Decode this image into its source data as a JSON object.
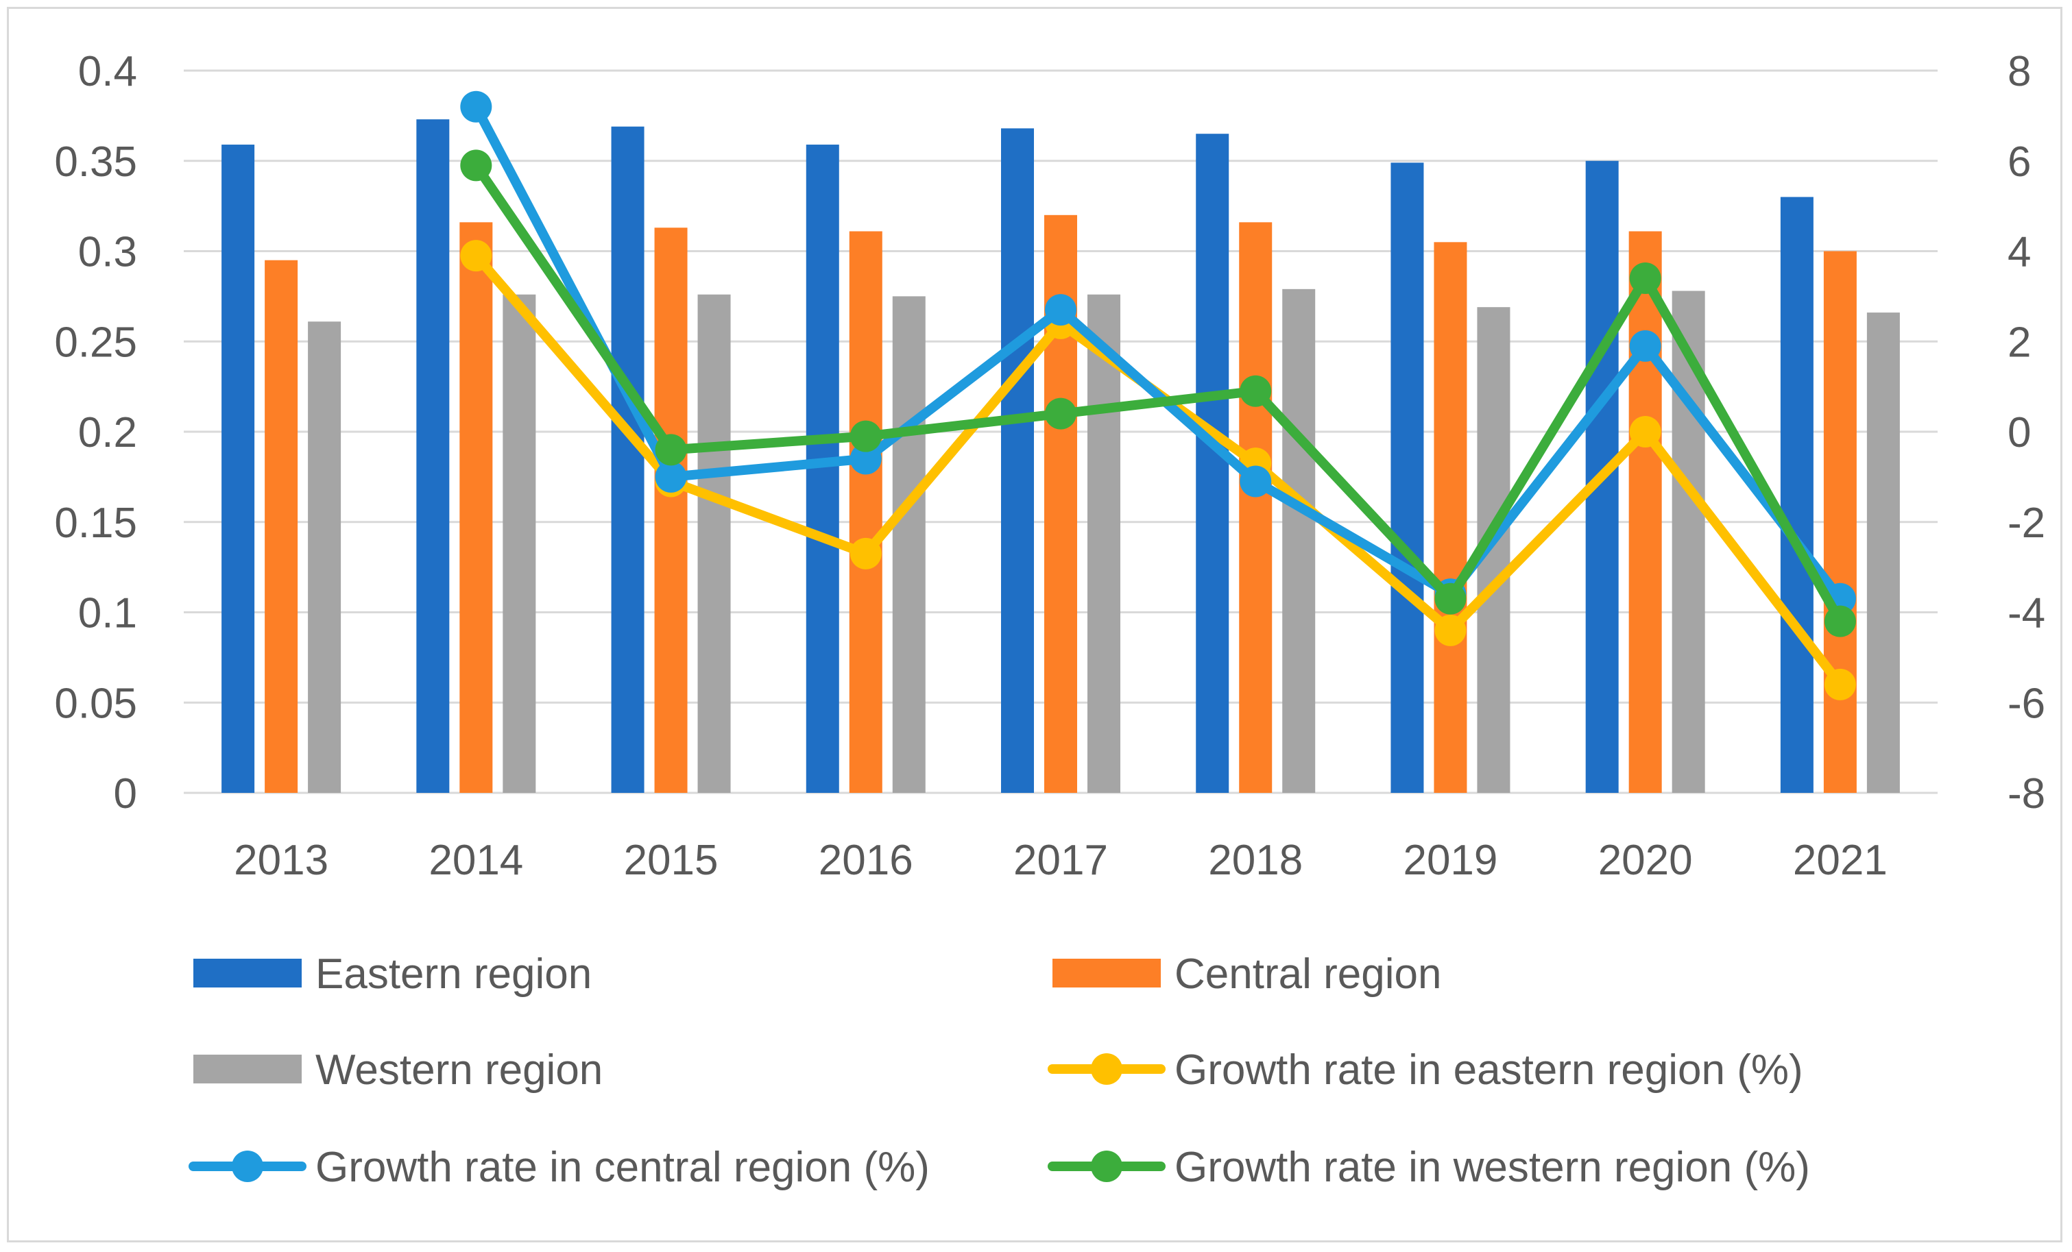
{
  "chart_data": {
    "type": "bar",
    "title": "",
    "xlabel": "",
    "ylabel": "",
    "categories": [
      "2013",
      "2014",
      "2015",
      "2016",
      "2017",
      "2018",
      "2019",
      "2020",
      "2021"
    ],
    "y_left": {
      "min": 0,
      "max": 0.4,
      "step": 0.05,
      "ticks": [
        "0",
        "0.05",
        "0.1",
        "0.15",
        "0.2",
        "0.25",
        "0.3",
        "0.35",
        "0.4"
      ]
    },
    "y_right": {
      "min": -8,
      "max": 8,
      "step": 2,
      "ticks": [
        "-8",
        "-6",
        "-4",
        "-2",
        "0",
        "2",
        "4",
        "6",
        "8"
      ]
    },
    "grid": true,
    "legend_position": "bottom",
    "series": [
      {
        "name": "Eastern region",
        "kind": "bar",
        "axis": "left",
        "color": "#1f6fc5",
        "values": [
          0.359,
          0.373,
          0.369,
          0.359,
          0.368,
          0.365,
          0.349,
          0.35,
          0.33
        ]
      },
      {
        "name": "Central region",
        "kind": "bar",
        "axis": "left",
        "color": "#fd7f26",
        "values": [
          0.295,
          0.316,
          0.313,
          0.311,
          0.32,
          0.316,
          0.305,
          0.311,
          0.3
        ]
      },
      {
        "name": "Western region",
        "kind": "bar",
        "axis": "left",
        "color": "#a5a5a5",
        "values": [
          0.261,
          0.276,
          0.276,
          0.275,
          0.276,
          0.279,
          0.269,
          0.278,
          0.266
        ]
      },
      {
        "name": "Growth rate in eastern region (%)",
        "kind": "line",
        "axis": "right",
        "color": "#ffc000",
        "values": [
          null,
          3.9,
          -1.1,
          -2.7,
          2.4,
          -0.7,
          -4.4,
          0.0,
          -5.6
        ]
      },
      {
        "name": "Growth rate in central region (%)",
        "kind": "line",
        "axis": "right",
        "color": "#1f9bde",
        "values": [
          null,
          7.2,
          -1.0,
          -0.6,
          2.7,
          -1.1,
          -3.6,
          1.9,
          -3.7
        ]
      },
      {
        "name": "Growth rate in  western region (%)",
        "kind": "line",
        "axis": "right",
        "color": "#3cad3c",
        "values": [
          null,
          5.9,
          -0.4,
          -0.1,
          0.4,
          0.9,
          -3.7,
          3.4,
          -4.2
        ]
      }
    ]
  }
}
